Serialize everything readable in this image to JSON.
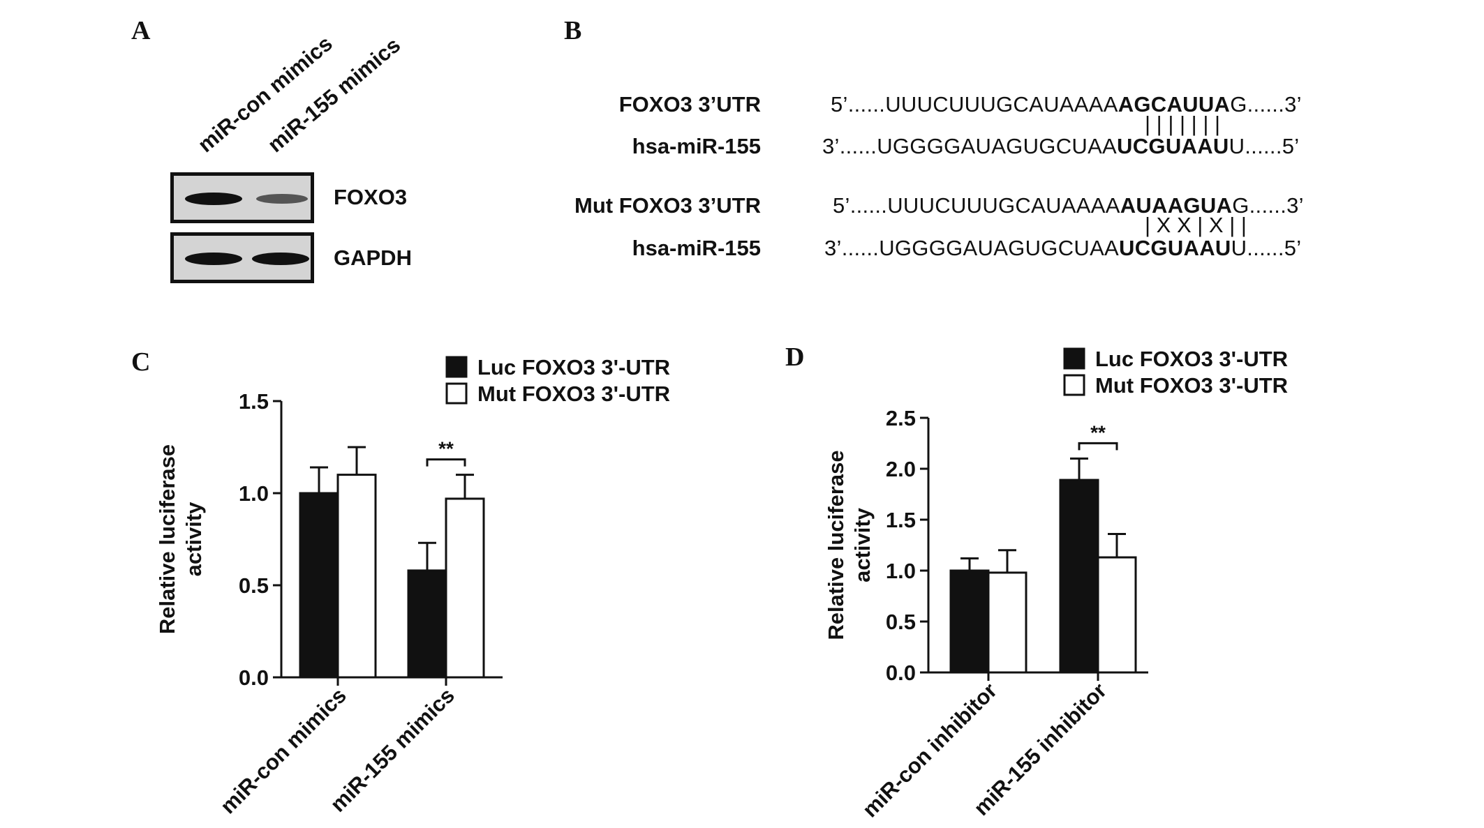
{
  "panels": {
    "a": "A",
    "b": "B",
    "c": "C",
    "d": "D"
  },
  "western_blot": {
    "lanes": [
      "miR-con mimics",
      "miR-155 mimics"
    ],
    "rows": [
      {
        "label": "FOXO3",
        "intensity": [
          1.0,
          0.4
        ]
      },
      {
        "label": "GAPDH",
        "intensity": [
          1.0,
          1.0
        ]
      }
    ]
  },
  "alignment": {
    "rows": [
      {
        "name": "FOXO3 3’UTR",
        "prefix": "5’......UUUCUUUGCAUAAAA",
        "bold": "AGCAUUA",
        "suffix": "G......3’"
      },
      {
        "pairs": "| | | | | | |"
      },
      {
        "name": "hsa-miR-155",
        "prefix": "3’......UGGGGAUAGUGCUAA",
        "bold": "UCGUAAU",
        "suffix": "U......5’"
      },
      {
        "name": "Mut FOXO3 3’UTR",
        "prefix": "5’......UUUCUUUGCAUAAAA",
        "bold": "AUAAGUA",
        "suffix": "G......3’"
      },
      {
        "pairs": "| X X | X | |"
      },
      {
        "name": "hsa-miR-155",
        "prefix": "3’......UGGGGAUAGUGCUAA",
        "bold": "UCGUAAU",
        "suffix": "U......5’"
      }
    ]
  },
  "chart_data": [
    {
      "type": "bar",
      "panel": "C",
      "categories": [
        "miR-con mimics",
        "miR-155 mimics"
      ],
      "series": [
        {
          "name": "Luc FOXO3 3'-UTR",
          "values": [
            1.0,
            0.58
          ],
          "errors": [
            0.14,
            0.15
          ],
          "color": "#111111"
        },
        {
          "name": "Mut FOXO3 3'-UTR",
          "values": [
            1.1,
            0.97
          ],
          "errors": [
            0.15,
            0.13
          ],
          "color": "#ffffff"
        }
      ],
      "ylabel_lines": [
        "Relative luciferase",
        "activity"
      ],
      "ylim": [
        0,
        1.5
      ],
      "yticks": [
        "0.0",
        "0.5",
        "1.0",
        "1.5"
      ],
      "significance": {
        "category_index": 1,
        "label": "**"
      },
      "legend_position": "top-right"
    },
    {
      "type": "bar",
      "panel": "D",
      "categories": [
        "miR-con inhibitor",
        "miR-155 inhibitor"
      ],
      "series": [
        {
          "name": "Luc FOXO3 3'-UTR",
          "values": [
            1.0,
            1.89
          ],
          "errors": [
            0.12,
            0.21
          ],
          "color": "#111111"
        },
        {
          "name": "Mut FOXO3 3'-UTR",
          "values": [
            0.98,
            1.13
          ],
          "errors": [
            0.22,
            0.23
          ],
          "color": "#ffffff"
        }
      ],
      "ylabel_lines": [
        "Relative luciferase",
        "activity"
      ],
      "ylim": [
        0,
        2.5
      ],
      "yticks": [
        "0.0",
        "0.5",
        "1.0",
        "1.5",
        "2.0",
        "2.5"
      ],
      "significance": {
        "category_index": 1,
        "label": "**"
      },
      "legend_position": "top-right"
    }
  ]
}
